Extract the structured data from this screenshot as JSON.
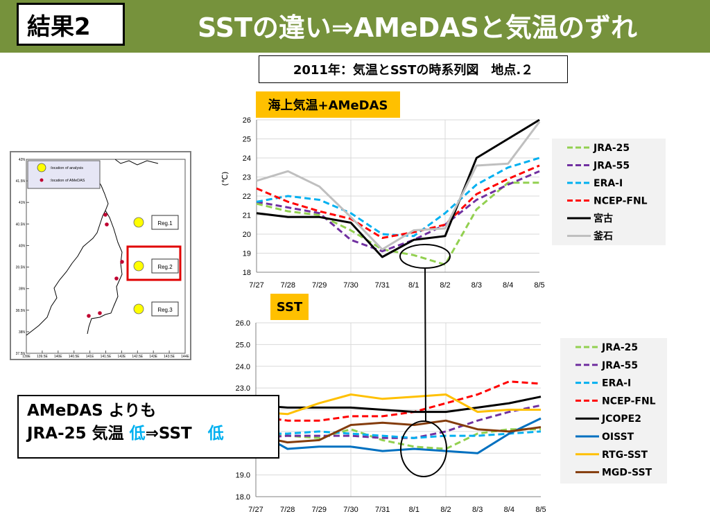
{
  "header": {
    "badge_text": "結果2",
    "title": "SSTの違い⇒AMeDASと気温のずれ",
    "background": "#76923c"
  },
  "subtitle": "2011年：気温とSSTの時系列図　地点.２",
  "map": {
    "legend": [
      {
        "label": ":location of analysis",
        "marker": "yellow-circle"
      },
      {
        "label": ":location of AMeDAS",
        "marker": "red-dot"
      }
    ],
    "lat_labels": [
      "42N",
      "41.5N",
      "41N",
      "40.5N",
      "40N",
      "39.5N",
      "39N",
      "38.5N",
      "38N",
      "37.5N"
    ],
    "lon_labels": [
      "139E",
      "139.5E",
      "140E",
      "140.5E",
      "141E",
      "141.5E",
      "142E",
      "142.5E",
      "143E",
      "143.5E",
      "144E"
    ],
    "regions": [
      "Reg.1",
      "Reg.2",
      "Reg.3"
    ],
    "highlighted_region": "Reg.2",
    "highlight_color": "#e00000"
  },
  "callout": {
    "line1": "AMeDAS よりも",
    "line2_prefix": "JRA-25 気温 ",
    "low1": "低",
    "arrow_sst": "⇒SST　",
    "low2": "低",
    "low_color": "#00b0f0"
  },
  "chart_data": [
    {
      "label": "海上気温+AMeDAS",
      "type": "line",
      "x": [
        "7/27",
        "7/28",
        "7/29",
        "7/30",
        "7/31",
        "8/1",
        "8/2",
        "8/3",
        "8/4",
        "8/5"
      ],
      "ylim": [
        18,
        26
      ],
      "yticks": [
        "18",
        "19",
        "20",
        "21",
        "22",
        "23",
        "24",
        "25",
        "26"
      ],
      "ylabel": "(℃)",
      "series": [
        {
          "name": "JRA-25",
          "color": "#92d050",
          "dash": true,
          "values": [
            21.6,
            21.2,
            21.0,
            20.2,
            19.2,
            18.9,
            18.4,
            21.3,
            22.7,
            22.7
          ]
        },
        {
          "name": "JRA-55",
          "color": "#7030a0",
          "dash": true,
          "values": [
            21.7,
            21.4,
            21.1,
            19.7,
            19.1,
            19.7,
            20.5,
            21.8,
            22.6,
            23.3
          ]
        },
        {
          "name": "ERA-I",
          "color": "#00b0f0",
          "dash": true,
          "values": [
            21.7,
            22.0,
            21.8,
            21.1,
            20.0,
            19.9,
            21.1,
            22.6,
            23.5,
            24.0
          ]
        },
        {
          "name": "NCEP-FNL",
          "color": "#ff0000",
          "dash": true,
          "values": [
            22.4,
            21.7,
            21.2,
            20.8,
            19.8,
            20.1,
            20.5,
            22.1,
            22.9,
            23.6
          ]
        },
        {
          "name": "宮古",
          "color": "#000000",
          "dash": false,
          "values": [
            21.1,
            20.9,
            20.9,
            20.6,
            18.8,
            19.7,
            19.9,
            24.0,
            25.0,
            26.0
          ]
        },
        {
          "name": "釜石",
          "color": "#bfbfbf",
          "dash": false,
          "values": [
            22.8,
            23.3,
            22.5,
            20.9,
            19.2,
            20.2,
            20.3,
            23.6,
            23.7,
            25.9
          ]
        }
      ]
    },
    {
      "label": "SST",
      "type": "line",
      "x": [
        "7/27",
        "7/28",
        "7/29",
        "7/30",
        "7/31",
        "8/1",
        "8/2",
        "8/3",
        "8/4",
        "8/5"
      ],
      "ylim": [
        18,
        26
      ],
      "yticks": [
        "18.0",
        "19.0",
        "20.0",
        "21.0",
        "22.0",
        "23.0",
        "24.0",
        "25.0",
        "26.0"
      ],
      "series": [
        {
          "name": "JRA-25",
          "color": "#92d050",
          "dash": true,
          "values": [
            20.9,
            20.8,
            20.7,
            21.1,
            20.6,
            20.3,
            20.2,
            20.9,
            21.1,
            21.1
          ]
        },
        {
          "name": "JRA-55",
          "color": "#7030a0",
          "dash": true,
          "values": [
            20.7,
            20.8,
            20.8,
            20.8,
            20.7,
            20.7,
            21.0,
            21.5,
            21.9,
            22.2
          ]
        },
        {
          "name": "ERA-I",
          "color": "#00b0f0",
          "dash": true,
          "values": [
            20.9,
            20.9,
            21.0,
            20.9,
            20.8,
            20.7,
            20.8,
            20.8,
            20.9,
            21.0
          ]
        },
        {
          "name": "NCEP-FNL",
          "color": "#ff0000",
          "dash": true,
          "values": [
            21.7,
            21.5,
            21.5,
            21.7,
            21.7,
            21.9,
            22.3,
            22.7,
            23.3,
            23.2
          ]
        },
        {
          "name": "JCOPE2",
          "color": "#000000",
          "dash": false,
          "values": [
            22.2,
            22.1,
            22.1,
            22.1,
            22.0,
            21.9,
            21.9,
            22.1,
            22.3,
            22.6
          ]
        },
        {
          "name": "OISST",
          "color": "#0070c0",
          "dash": false,
          "values": [
            21.0,
            20.2,
            20.3,
            20.3,
            20.1,
            20.2,
            20.1,
            20.0,
            20.9,
            21.6
          ]
        },
        {
          "name": "RTG-SST",
          "color": "#ffc000",
          "dash": false,
          "values": [
            21.9,
            21.8,
            22.3,
            22.7,
            22.5,
            22.6,
            22.7,
            21.9,
            22.0,
            22.0
          ]
        },
        {
          "name": "MGD-SST",
          "color": "#843c0c",
          "dash": false,
          "values": [
            20.8,
            20.5,
            20.6,
            21.3,
            21.4,
            21.3,
            21.5,
            21.1,
            21.0,
            21.2
          ]
        }
      ]
    }
  ]
}
